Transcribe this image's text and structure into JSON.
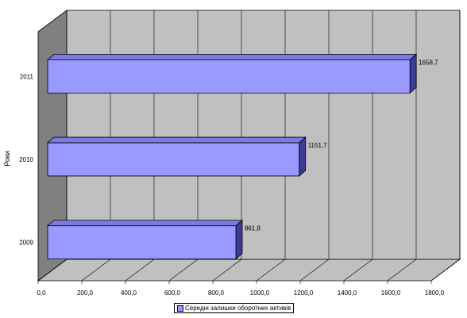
{
  "chart_data": {
    "type": "bar",
    "orientation": "horizontal",
    "three_d": true,
    "categories": [
      "2011",
      "2010",
      "2009"
    ],
    "series": [
      {
        "name": "Середні залишки оборотних активів",
        "values": [
          1658.7,
          1151.7,
          861.8
        ]
      }
    ],
    "data_labels": [
      "1658,7",
      "1151,7",
      "861,8"
    ],
    "ylabel": "Роки",
    "xlabel": "",
    "xlim": [
      0,
      1800
    ],
    "x_ticks": [
      "0,0",
      "200,0",
      "400,0",
      "600,0",
      "800,0",
      "1000,0",
      "1200,0",
      "1400,0",
      "1600,0",
      "1800,0"
    ],
    "grid": true,
    "legend_position": "bottom",
    "colors": {
      "bar_front": "#9999ff",
      "bar_top": "#7c7ce0",
      "bar_side": "#3c3c96",
      "back_wall": "#c0c0c0",
      "side_wall": "#808080",
      "floor": "#c0c0c0"
    }
  }
}
